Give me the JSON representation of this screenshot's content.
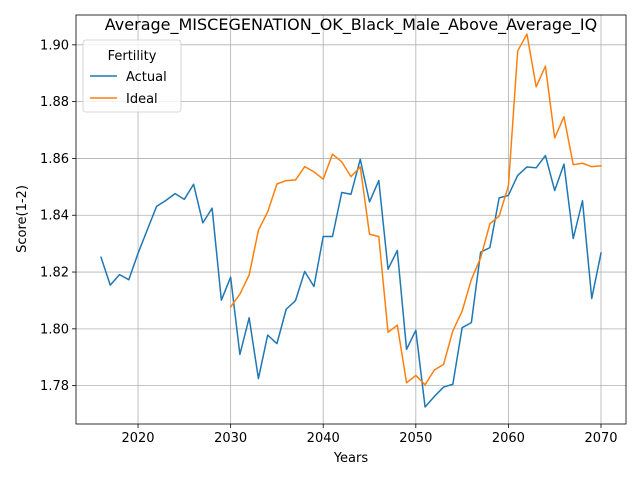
{
  "chart_data": {
    "type": "line",
    "title": "Average_MISCEGENATION_OK_Black_Male_Above_Average_IQ",
    "xlabel": "Years",
    "ylabel": "Score(1-2)",
    "xlim": [
      2013.3,
      2072.7
    ],
    "ylim": [
      1.7665,
      1.9105
    ],
    "xticks": [
      2020,
      2030,
      2040,
      2050,
      2060,
      2070
    ],
    "yticks": [
      1.78,
      1.8,
      1.82,
      1.84,
      1.86,
      1.88,
      1.9
    ],
    "ytick_labels": [
      "1.78",
      "1.80",
      "1.82",
      "1.84",
      "1.86",
      "1.88",
      "1.90"
    ],
    "grid": true,
    "legend": {
      "title": "Fertility",
      "placement": "top-left"
    },
    "series": [
      {
        "name": "Actual",
        "color": "#1f77b4",
        "x": [
          2016,
          2017,
          2018,
          2019,
          2020,
          2021,
          2022,
          2023,
          2024,
          2025,
          2026,
          2027,
          2028,
          2029,
          2030,
          2031,
          2032,
          2033,
          2034,
          2035,
          2036,
          2037,
          2038,
          2039,
          2040,
          2041,
          2042,
          2043,
          2044,
          2045,
          2046,
          2047,
          2048,
          2049,
          2050,
          2051,
          2052,
          2053,
          2054,
          2055,
          2056,
          2057,
          2058,
          2059,
          2060,
          2061,
          2062,
          2063,
          2064,
          2065,
          2066,
          2067,
          2068,
          2069,
          2070
        ],
        "y": [
          1.8252,
          1.8154,
          1.8191,
          1.8173,
          1.8266,
          1.8349,
          1.8431,
          1.8452,
          1.8476,
          1.8456,
          1.8509,
          1.8373,
          1.8425,
          1.8101,
          1.8182,
          1.791,
          1.8039,
          1.7825,
          1.7978,
          1.7948,
          1.8069,
          1.8099,
          1.8202,
          1.8149,
          1.8325,
          1.8325,
          1.848,
          1.8474,
          1.8597,
          1.8447,
          1.8522,
          1.821,
          1.8276,
          1.7928,
          1.7995,
          1.7725,
          1.7762,
          1.7795,
          1.7805,
          1.8004,
          1.8022,
          1.827,
          1.8286,
          1.8461,
          1.847,
          1.854,
          1.857,
          1.8567,
          1.861,
          1.8487,
          1.858,
          1.8318,
          1.8451,
          1.8107,
          1.8267
        ]
      },
      {
        "name": "Ideal",
        "color": "#ff7f0e",
        "x": [
          2030,
          2031,
          2032,
          2033,
          2034,
          2035,
          2036,
          2037,
          2038,
          2039,
          2040,
          2041,
          2042,
          2043,
          2044,
          2045,
          2046,
          2047,
          2048,
          2049,
          2050,
          2051,
          2052,
          2053,
          2054,
          2055,
          2056,
          2057,
          2058,
          2059,
          2060,
          2061,
          2062,
          2063,
          2064,
          2065,
          2066,
          2067,
          2068,
          2069,
          2070
        ],
        "y": [
          1.8077,
          1.8122,
          1.819,
          1.8347,
          1.8412,
          1.851,
          1.8522,
          1.8524,
          1.8571,
          1.8553,
          1.8527,
          1.8615,
          1.8588,
          1.8536,
          1.857,
          1.8333,
          1.8325,
          1.7988,
          1.8013,
          1.781,
          1.7836,
          1.7803,
          1.7855,
          1.7875,
          1.7993,
          1.8062,
          1.8174,
          1.825,
          1.837,
          1.8397,
          1.8503,
          1.8978,
          1.9038,
          1.8852,
          1.8925,
          1.8672,
          1.8747,
          1.8578,
          1.8583,
          1.8571,
          1.8574
        ]
      }
    ]
  }
}
